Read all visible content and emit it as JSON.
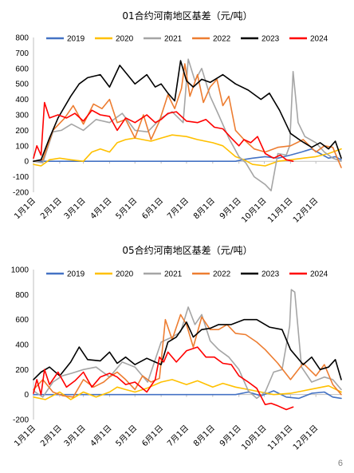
{
  "page_number": "6",
  "chart_data": [
    {
      "type": "line",
      "title": "01合约河南地区基差（元/吨）",
      "ylim": [
        -200,
        800
      ],
      "yticks": [
        -200,
        -100,
        0,
        100,
        200,
        300,
        400,
        500,
        600,
        700,
        800
      ],
      "xlim": [
        1,
        365
      ],
      "xticks": [
        {
          "label": "1月1日",
          "day": 1
        },
        {
          "label": "2月1日",
          "day": 32
        },
        {
          "label": "3月1日",
          "day": 60
        },
        {
          "label": "4月1日",
          "day": 91
        },
        {
          "label": "5月1日",
          "day": 121
        },
        {
          "label": "6月1日",
          "day": 152
        },
        {
          "label": "7月1日",
          "day": 182
        },
        {
          "label": "8月1日",
          "day": 213
        },
        {
          "label": "9月1日",
          "day": 244
        },
        {
          "label": "10月1日",
          "day": 274
        },
        {
          "label": "11月1日",
          "day": 305
        },
        {
          "label": "12月1日",
          "day": 335
        }
      ],
      "legend_position": "top",
      "grid": false,
      "series": [
        {
          "name": "2019",
          "color": "#4472c4",
          "x": [
            1,
            30,
            60,
            90,
            120,
            150,
            180,
            210,
            240,
            248,
            260,
            275,
            290,
            305,
            318,
            330,
            340,
            350,
            358,
            365
          ],
          "y": [
            0,
            0,
            0,
            0,
            0,
            0,
            0,
            0,
            0,
            10,
            20,
            30,
            20,
            40,
            60,
            80,
            50,
            20,
            30,
            10
          ]
        },
        {
          "name": "2020",
          "color": "#ffc000",
          "x": [
            1,
            10,
            20,
            32,
            45,
            60,
            70,
            80,
            91,
            100,
            110,
            121,
            130,
            140,
            152,
            165,
            182,
            195,
            213,
            225,
            240,
            250,
            260,
            275,
            290,
            305,
            320,
            335,
            350,
            365
          ],
          "y": [
            -20,
            -30,
            10,
            20,
            10,
            0,
            60,
            80,
            60,
            120,
            140,
            150,
            140,
            130,
            150,
            170,
            160,
            140,
            120,
            100,
            30,
            10,
            -20,
            -30,
            0,
            10,
            20,
            30,
            50,
            80
          ]
        },
        {
          "name": "2021",
          "color": "#a5a5a5",
          "x": [
            1,
            12,
            24,
            34,
            46,
            60,
            75,
            91,
            106,
            121,
            136,
            152,
            165,
            178,
            184,
            192,
            200,
            210,
            220,
            232,
            244,
            252,
            262,
            275,
            282,
            290,
            300,
            304,
            308,
            314,
            322,
            335,
            345,
            355,
            365
          ],
          "y": [
            0,
            -10,
            190,
            200,
            240,
            200,
            270,
            250,
            310,
            200,
            190,
            280,
            320,
            250,
            660,
            520,
            600,
            420,
            300,
            150,
            30,
            -10,
            -100,
            -150,
            -190,
            50,
            40,
            100,
            580,
            250,
            160,
            120,
            60,
            20,
            0
          ]
        },
        {
          "name": "2022",
          "color": "#ed7d31",
          "x": [
            1,
            12,
            24,
            38,
            48,
            60,
            72,
            82,
            91,
            100,
            110,
            121,
            131,
            140,
            150,
            160,
            168,
            176,
            180,
            186,
            195,
            202,
            210,
            218,
            225,
            232,
            240,
            250,
            262,
            275,
            290,
            305,
            320,
            335,
            345,
            355,
            365
          ],
          "y": [
            0,
            10,
            200,
            280,
            360,
            240,
            370,
            340,
            400,
            250,
            270,
            150,
            300,
            140,
            260,
            430,
            340,
            470,
            630,
            420,
            560,
            380,
            480,
            530,
            360,
            420,
            200,
            140,
            80,
            60,
            90,
            100,
            140,
            60,
            100,
            90,
            -40
          ]
        },
        {
          "name": "2023",
          "color": "#000000",
          "x": [
            1,
            10,
            20,
            30,
            45,
            55,
            65,
            80,
            91,
            103,
            115,
            121,
            135,
            145,
            152,
            160,
            168,
            175,
            182,
            190,
            200,
            210,
            225,
            240,
            255,
            270,
            280,
            292,
            305,
            318,
            330,
            340,
            350,
            358,
            365
          ],
          "y": [
            0,
            10,
            150,
            280,
            420,
            500,
            540,
            560,
            480,
            620,
            540,
            500,
            560,
            480,
            500,
            440,
            390,
            650,
            520,
            480,
            530,
            510,
            560,
            500,
            460,
            400,
            440,
            330,
            180,
            130,
            90,
            120,
            80,
            130,
            20
          ]
        },
        {
          "name": "2024",
          "color": "#ff0000",
          "x": [
            1,
            5,
            10,
            14,
            20,
            30,
            40,
            50,
            60,
            70,
            80,
            91,
            100,
            110,
            121,
            135,
            145,
            152,
            160,
            170,
            182,
            195,
            205,
            215,
            225,
            235,
            244,
            250,
            258,
            266,
            275,
            285,
            293,
            300,
            308
          ],
          "y": [
            20,
            100,
            40,
            380,
            280,
            300,
            280,
            310,
            260,
            330,
            300,
            290,
            200,
            280,
            250,
            300,
            250,
            270,
            310,
            320,
            260,
            250,
            270,
            220,
            210,
            150,
            100,
            140,
            120,
            160,
            50,
            20,
            40,
            10,
            0
          ]
        }
      ]
    },
    {
      "type": "line",
      "title": "05合约河南地区基差（元/吨）",
      "ylim": [
        -200,
        1000
      ],
      "yticks": [
        -200,
        0,
        200,
        400,
        600,
        800,
        1000
      ],
      "xlim": [
        1,
        365
      ],
      "xticks": [
        {
          "label": "1月1日",
          "day": 1
        },
        {
          "label": "2月1日",
          "day": 32
        },
        {
          "label": "3月1日",
          "day": 60
        },
        {
          "label": "4月1日",
          "day": 91
        },
        {
          "label": "5月1日",
          "day": 121
        },
        {
          "label": "6月1日",
          "day": 152
        },
        {
          "label": "7月1日",
          "day": 182
        },
        {
          "label": "8月1日",
          "day": 213
        },
        {
          "label": "9月1日",
          "day": 244
        },
        {
          "label": "10月1日",
          "day": 274
        },
        {
          "label": "11月1日",
          "day": 305
        },
        {
          "label": "12月1日",
          "day": 335
        }
      ],
      "legend_position": "top",
      "grid": false,
      "series": [
        {
          "name": "2019",
          "color": "#4472c4",
          "x": [
            1,
            30,
            60,
            90,
            120,
            150,
            180,
            210,
            240,
            255,
            270,
            285,
            300,
            315,
            330,
            345,
            355,
            365
          ],
          "y": [
            0,
            0,
            0,
            0,
            0,
            0,
            0,
            0,
            0,
            20,
            -10,
            30,
            -20,
            -30,
            10,
            20,
            -20,
            -30
          ]
        },
        {
          "name": "2020",
          "color": "#ffc000",
          "x": [
            1,
            15,
            32,
            45,
            60,
            75,
            91,
            100,
            110,
            121,
            135,
            152,
            165,
            182,
            195,
            213,
            225,
            240,
            255,
            270,
            285,
            305,
            320,
            335,
            350,
            365
          ],
          "y": [
            -20,
            -40,
            20,
            -40,
            20,
            -20,
            20,
            60,
            40,
            20,
            50,
            100,
            120,
            80,
            110,
            60,
            90,
            60,
            40,
            20,
            0,
            10,
            30,
            50,
            70,
            20
          ]
        },
        {
          "name": "2021",
          "color": "#a5a5a5",
          "x": [
            1,
            12,
            24,
            35,
            46,
            60,
            75,
            91,
            106,
            121,
            136,
            152,
            165,
            175,
            184,
            192,
            200,
            210,
            220,
            232,
            244,
            255,
            265,
            275,
            285,
            295,
            304,
            306,
            310,
            318,
            330,
            345,
            355,
            365
          ],
          "y": [
            30,
            -20,
            100,
            150,
            170,
            200,
            220,
            140,
            260,
            220,
            100,
            420,
            460,
            500,
            700,
            560,
            640,
            430,
            360,
            300,
            200,
            30,
            -30,
            20,
            180,
            200,
            550,
            840,
            820,
            220,
            100,
            140,
            120,
            40
          ]
        },
        {
          "name": "2022",
          "color": "#ed7d31",
          "x": [
            1,
            12,
            24,
            36,
            48,
            60,
            72,
            84,
            91,
            100,
            110,
            121,
            130,
            140,
            150,
            157,
            165,
            175,
            182,
            190,
            200,
            210,
            220,
            230,
            240,
            252,
            265,
            275,
            290,
            305,
            320,
            335,
            345,
            355,
            365
          ],
          "y": [
            40,
            120,
            20,
            -10,
            -20,
            120,
            60,
            100,
            140,
            180,
            120,
            40,
            150,
            100,
            130,
            600,
            440,
            640,
            560,
            380,
            620,
            520,
            520,
            560,
            490,
            480,
            420,
            360,
            250,
            120,
            250,
            150,
            240,
            80,
            0
          ]
        },
        {
          "name": "2023",
          "color": "#000000",
          "x": [
            1,
            10,
            20,
            32,
            45,
            55,
            65,
            80,
            91,
            100,
            110,
            121,
            135,
            145,
            152,
            160,
            170,
            182,
            190,
            200,
            210,
            220,
            235,
            250,
            265,
            280,
            295,
            305,
            320,
            330,
            340,
            350,
            358,
            365
          ],
          "y": [
            120,
            180,
            220,
            150,
            260,
            380,
            280,
            270,
            340,
            250,
            300,
            240,
            290,
            260,
            240,
            420,
            460,
            580,
            460,
            520,
            530,
            560,
            560,
            600,
            600,
            540,
            520,
            360,
            240,
            300,
            200,
            220,
            280,
            120
          ]
        },
        {
          "name": "2024",
          "color": "#ff0000",
          "x": [
            1,
            5,
            10,
            14,
            20,
            30,
            40,
            50,
            60,
            70,
            80,
            91,
            100,
            110,
            121,
            135,
            145,
            150,
            155,
            160,
            170,
            182,
            195,
            205,
            215,
            225,
            235,
            244,
            255,
            265,
            275,
            282,
            290,
            300,
            308
          ],
          "y": [
            10,
            120,
            0,
            200,
            80,
            180,
            60,
            110,
            180,
            60,
            140,
            170,
            140,
            80,
            100,
            20,
            120,
            300,
            260,
            340,
            260,
            350,
            380,
            300,
            300,
            250,
            240,
            150,
            100,
            50,
            -80,
            -70,
            -90,
            -120,
            -100
          ]
        }
      ]
    }
  ]
}
